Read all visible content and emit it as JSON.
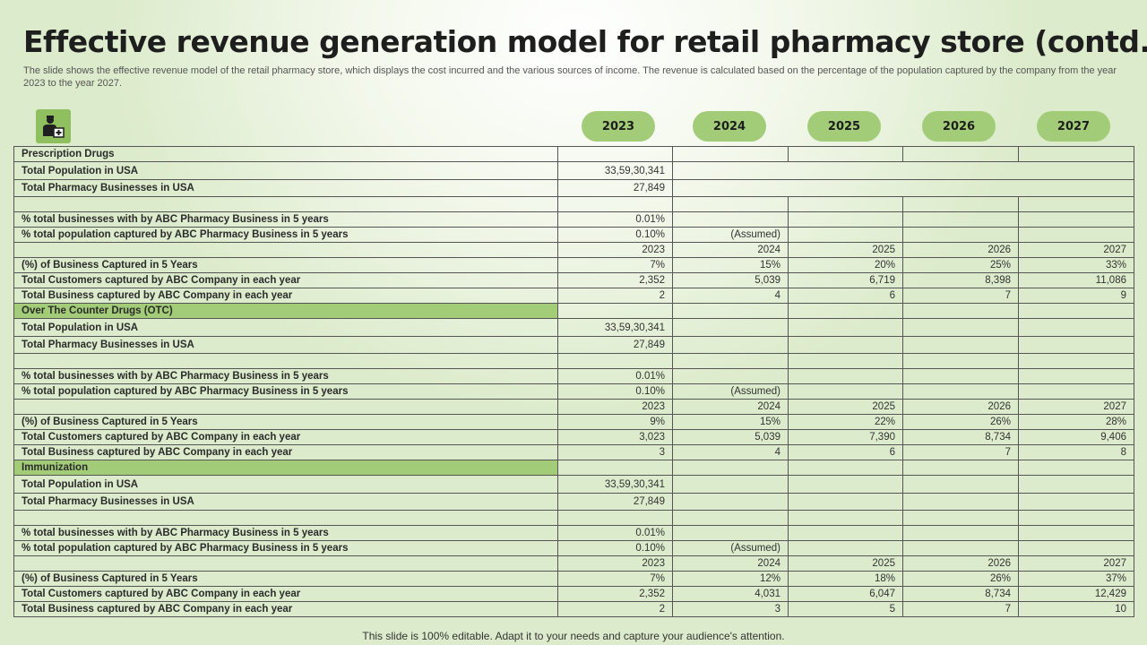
{
  "title": "Effective revenue generation model for retail pharmacy store (contd..)",
  "subtitle": "The slide shows the effective revenue model of the retail pharmacy store, which displays the cost incurred and the various sources of income. The revenue is calculated based on the percentage of the population captured by the company from the year 2023 to the year 2027.",
  "logo_icon": "pharmacist-icon",
  "accent_color": "#a2cc78",
  "years": [
    "2023",
    "2024",
    "2025",
    "2026",
    "2027"
  ],
  "sections": [
    {
      "name": "Prescription Drugs",
      "highlight": false,
      "population_label": "Total Population in USA",
      "population": "33,59,30,341",
      "businesses_label": "Total Pharmacy Businesses in USA",
      "businesses": "27,849",
      "pct_businesses_label": "% total businesses with by ABC Pharmacy Business in 5 years",
      "pct_businesses": "0.01%",
      "pct_population_label": "% total population captured by ABC Pharmacy Business in 5 years",
      "pct_population": "0.10%",
      "assumed": "(Assumed)",
      "years": [
        "2023",
        "2024",
        "2025",
        "2026",
        "2027"
      ],
      "captured_label": "(%) of Business Captured in 5 Years",
      "captured": [
        "7%",
        "15%",
        "20%",
        "25%",
        "33%"
      ],
      "customers_label": "Total Customers captured by ABC Company in each year",
      "customers": [
        "2,352",
        "5,039",
        "6,719",
        "8,398",
        "11,086"
      ],
      "business_label": "Total Business captured by ABC Company in each year",
      "business": [
        "2",
        "4",
        "6",
        "7",
        "9"
      ]
    },
    {
      "name": "Over The Counter Drugs (OTC)",
      "highlight": true,
      "population_label": "Total Population in USA",
      "population": "33,59,30,341",
      "businesses_label": "Total Pharmacy Businesses in USA",
      "businesses": "27,849",
      "pct_businesses_label": "% total businesses with by ABC Pharmacy Business in 5 years",
      "pct_businesses": "0.01%",
      "pct_population_label": "% total population captured by ABC Pharmacy Business in 5 years",
      "pct_population": "0.10%",
      "assumed": "(Assumed)",
      "years": [
        "2023",
        "2024",
        "2025",
        "2026",
        "2027"
      ],
      "captured_label": "(%) of Business Captured in 5 Years",
      "captured": [
        "9%",
        "15%",
        "22%",
        "26%",
        "28%"
      ],
      "customers_label": "Total Customers captured by ABC Company in each year",
      "customers": [
        "3,023",
        "5,039",
        "7,390",
        "8,734",
        "9,406"
      ],
      "business_label": "Total Business captured by ABC Company in each year",
      "business": [
        "3",
        "4",
        "6",
        "7",
        "8"
      ]
    },
    {
      "name": "Immunization",
      "highlight": true,
      "population_label": "Total Population in USA",
      "population": "33,59,30,341",
      "businesses_label": "Total Pharmacy Businesses in USA",
      "businesses": "27,849",
      "pct_businesses_label": "% total businesses with by ABC Pharmacy Business in 5 years",
      "pct_businesses": "0.01%",
      "pct_population_label": "% total population captured by ABC Pharmacy Business in 5 years",
      "pct_population": "0.10%",
      "assumed": "(Assumed)",
      "years": [
        "2023",
        "2024",
        "2025",
        "2026",
        "2027"
      ],
      "captured_label": "(%) of Business Captured in 5 Years",
      "captured": [
        "7%",
        "12%",
        "18%",
        "26%",
        "37%"
      ],
      "customers_label": "Total Customers captured by ABC Company in each year",
      "customers": [
        "2,352",
        "4,031",
        "6,047",
        "8,734",
        "12,429"
      ],
      "business_label": "Total Business captured by ABC Company in each year",
      "business": [
        "2",
        "3",
        "5",
        "7",
        "10"
      ]
    }
  ],
  "footer": "This slide is 100% editable. Adapt it to your needs and capture your audience's attention."
}
